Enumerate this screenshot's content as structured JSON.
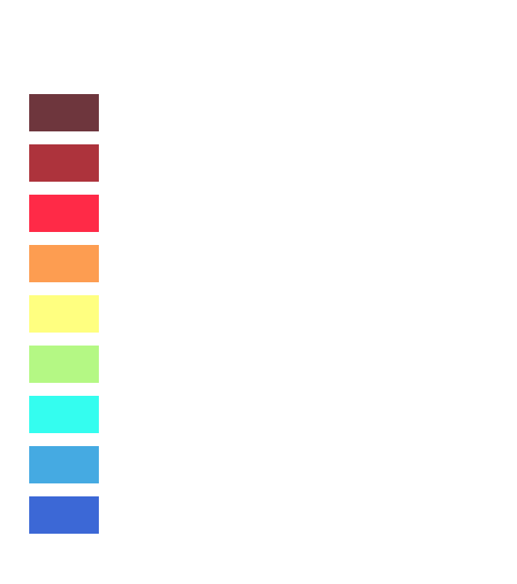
{
  "swatches": [
    {
      "color": "#6e363d"
    },
    {
      "color": "#ad333c"
    },
    {
      "color": "#ff2a47"
    },
    {
      "color": "#fd9d51"
    },
    {
      "color": "#ffff80"
    },
    {
      "color": "#b4f884"
    },
    {
      "color": "#34fdef"
    },
    {
      "color": "#45aae2"
    },
    {
      "color": "#3c68d6"
    }
  ]
}
